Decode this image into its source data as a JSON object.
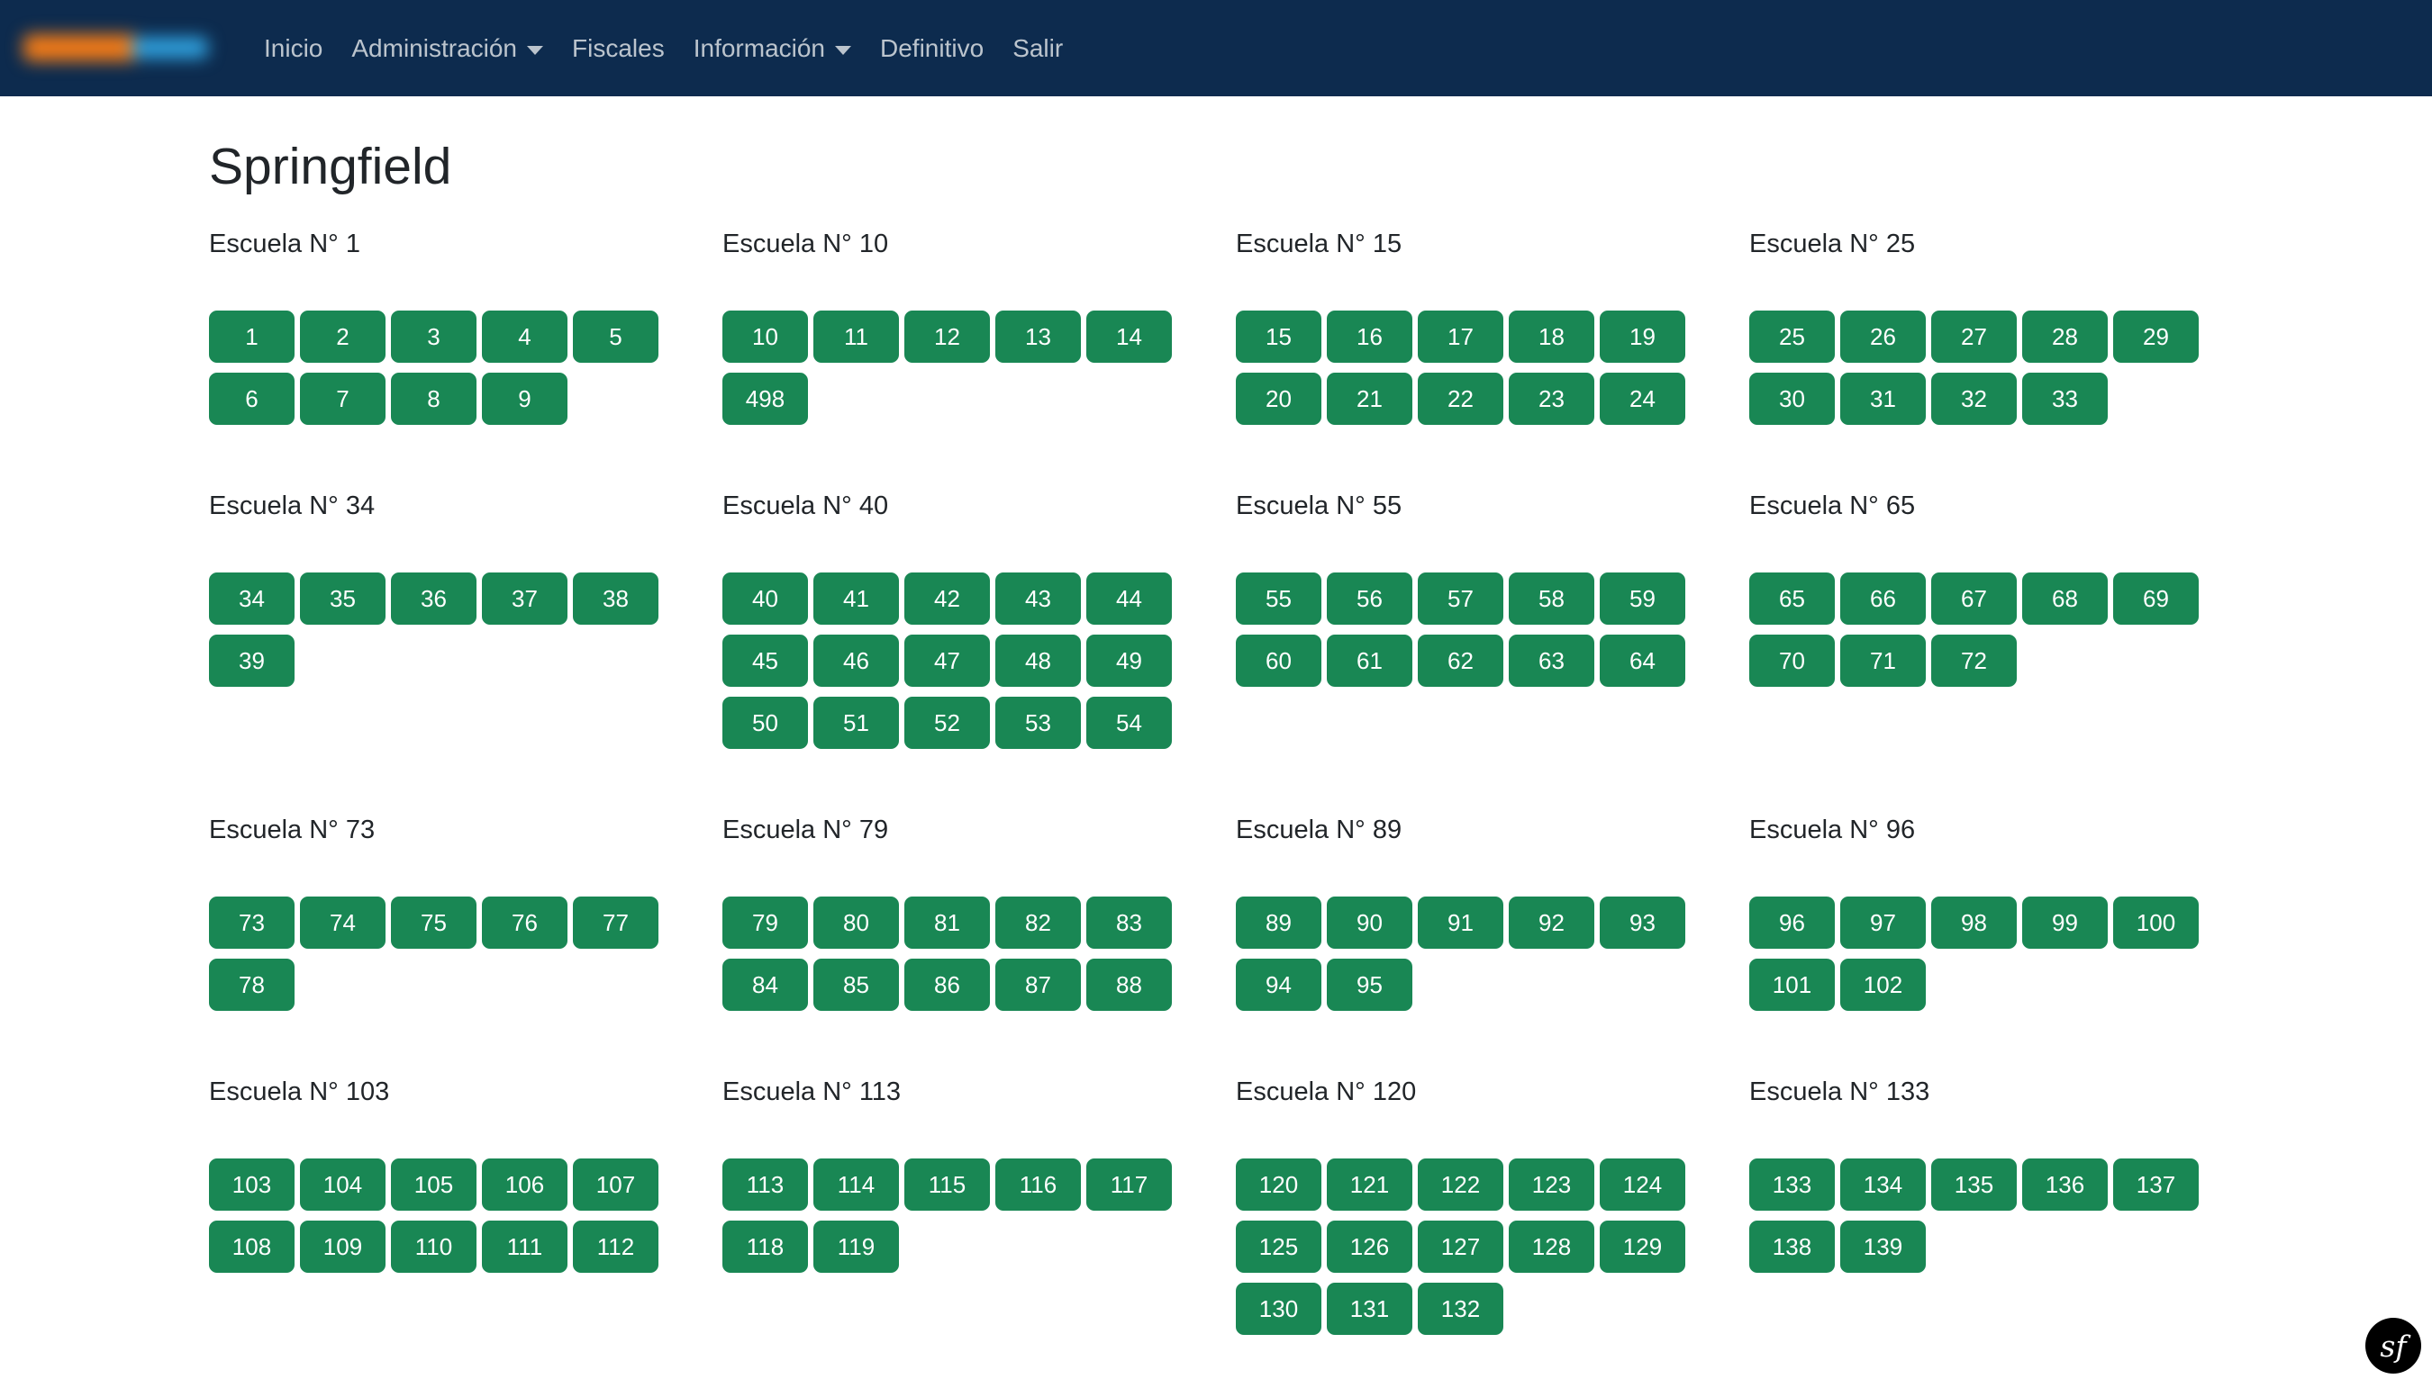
{
  "navbar": {
    "items": [
      {
        "label": "Inicio",
        "dropdown": false
      },
      {
        "label": "Administración",
        "dropdown": true
      },
      {
        "label": "Fiscales",
        "dropdown": false
      },
      {
        "label": "Información",
        "dropdown": true
      },
      {
        "label": "Definitivo",
        "dropdown": false
      },
      {
        "label": "Salir",
        "dropdown": false
      }
    ],
    "logo": {
      "blurred": true,
      "left_color": "#ef7a18",
      "right_color": "#2f9fdc"
    }
  },
  "page": {
    "title": "Springfield"
  },
  "schools": [
    {
      "name": "Escuela N° 1",
      "tables": [
        "1",
        "2",
        "3",
        "4",
        "5",
        "6",
        "7",
        "8",
        "9"
      ]
    },
    {
      "name": "Escuela N° 10",
      "tables": [
        "10",
        "11",
        "12",
        "13",
        "14",
        "498"
      ]
    },
    {
      "name": "Escuela N° 15",
      "tables": [
        "15",
        "16",
        "17",
        "18",
        "19",
        "20",
        "21",
        "22",
        "23",
        "24"
      ]
    },
    {
      "name": "Escuela N° 25",
      "tables": [
        "25",
        "26",
        "27",
        "28",
        "29",
        "30",
        "31",
        "32",
        "33"
      ]
    },
    {
      "name": "Escuela N° 34",
      "tables": [
        "34",
        "35",
        "36",
        "37",
        "38",
        "39"
      ]
    },
    {
      "name": "Escuela N° 40",
      "tables": [
        "40",
        "41",
        "42",
        "43",
        "44",
        "45",
        "46",
        "47",
        "48",
        "49",
        "50",
        "51",
        "52",
        "53",
        "54"
      ]
    },
    {
      "name": "Escuela N° 55",
      "tables": [
        "55",
        "56",
        "57",
        "58",
        "59",
        "60",
        "61",
        "62",
        "63",
        "64"
      ]
    },
    {
      "name": "Escuela N° 65",
      "tables": [
        "65",
        "66",
        "67",
        "68",
        "69",
        "70",
        "71",
        "72"
      ]
    },
    {
      "name": "Escuela N° 73",
      "tables": [
        "73",
        "74",
        "75",
        "76",
        "77",
        "78"
      ]
    },
    {
      "name": "Escuela N° 79",
      "tables": [
        "79",
        "80",
        "81",
        "82",
        "83",
        "84",
        "85",
        "86",
        "87",
        "88"
      ]
    },
    {
      "name": "Escuela N° 89",
      "tables": [
        "89",
        "90",
        "91",
        "92",
        "93",
        "94",
        "95"
      ]
    },
    {
      "name": "Escuela N° 96",
      "tables": [
        "96",
        "97",
        "98",
        "99",
        "100",
        "101",
        "102"
      ]
    },
    {
      "name": "Escuela N° 103",
      "tables": [
        "103",
        "104",
        "105",
        "106",
        "107",
        "108",
        "109",
        "110",
        "111",
        "112"
      ]
    },
    {
      "name": "Escuela N° 113",
      "tables": [
        "113",
        "114",
        "115",
        "116",
        "117",
        "118",
        "119"
      ]
    },
    {
      "name": "Escuela N° 120",
      "tables": [
        "120",
        "121",
        "122",
        "123",
        "124",
        "125",
        "126",
        "127",
        "128",
        "129",
        "130",
        "131",
        "132"
      ]
    },
    {
      "name": "Escuela N° 133",
      "tables": [
        "133",
        "134",
        "135",
        "136",
        "137",
        "138",
        "139"
      ]
    }
  ],
  "profiler": {
    "label": "sf"
  },
  "colors": {
    "navbar_bg": "#0d2b4e",
    "button_green": "#198754",
    "text": "#212529",
    "nav_link": "rgba(255,255,255,0.72)"
  }
}
